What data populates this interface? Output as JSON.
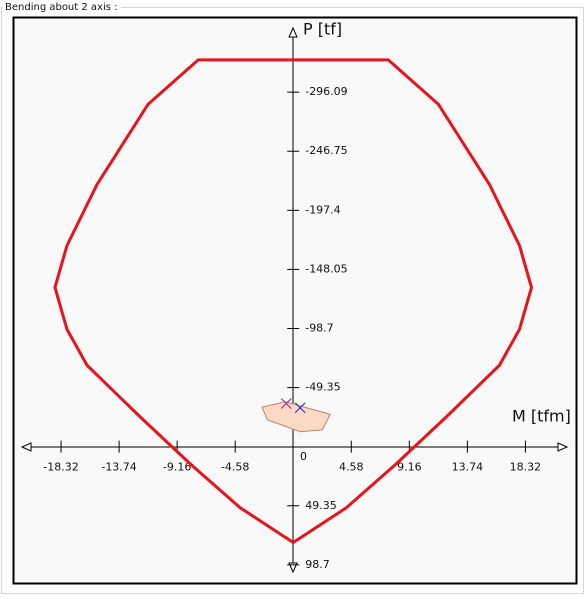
{
  "group_title": "Bending about 2 axis :",
  "chart_data": {
    "type": "line",
    "x_label": "M [tfm]",
    "y_label": "P [tf]",
    "origin": 0,
    "xlim": [
      -21.4,
      21.6
    ],
    "ylim": [
      103,
      -348
    ],
    "xticks": [
      -18.32,
      -13.74,
      -9.16,
      -4.58,
      4.58,
      9.16,
      13.74,
      18.32
    ],
    "yticks": [
      -296.09,
      -246.75,
      -197.4,
      -148.05,
      -98.7,
      -49.35,
      49.35,
      98.7
    ],
    "series": [
      {
        "color": "#e8141c",
        "closed": true,
        "x": [
          -7.5,
          7.5,
          11.45,
          15.48,
          17.85,
          18.8,
          17.85,
          16.27,
          12.09,
          8.06,
          4.19,
          0,
          -4.19,
          -8.06,
          -12.09,
          -16.27,
          -17.85,
          -18.8,
          -17.85,
          -15.48,
          -11.45
        ],
        "values": [
          -323,
          -323,
          -286,
          -219,
          -168,
          -133,
          -98,
          -68,
          -25,
          15,
          51,
          80,
          51,
          15,
          -25,
          -68,
          -98,
          -133,
          -168,
          -219,
          -286
        ]
      },
      {
        "color": "#c0826a",
        "fill": "#fcd9c4",
        "closed": true,
        "x": [
          -2.45,
          -0.63,
          2.92,
          2.29,
          0.55,
          -2.05
        ],
        "values": [
          -33,
          -37.5,
          -27,
          -14,
          -12.5,
          -22.5
        ]
      }
    ],
    "points": [
      {
        "color": "#a03ca8",
        "x": -0.55,
        "value": -36
      },
      {
        "color": "#3232d2",
        "x": 0.55,
        "value": -32.5
      }
    ]
  }
}
